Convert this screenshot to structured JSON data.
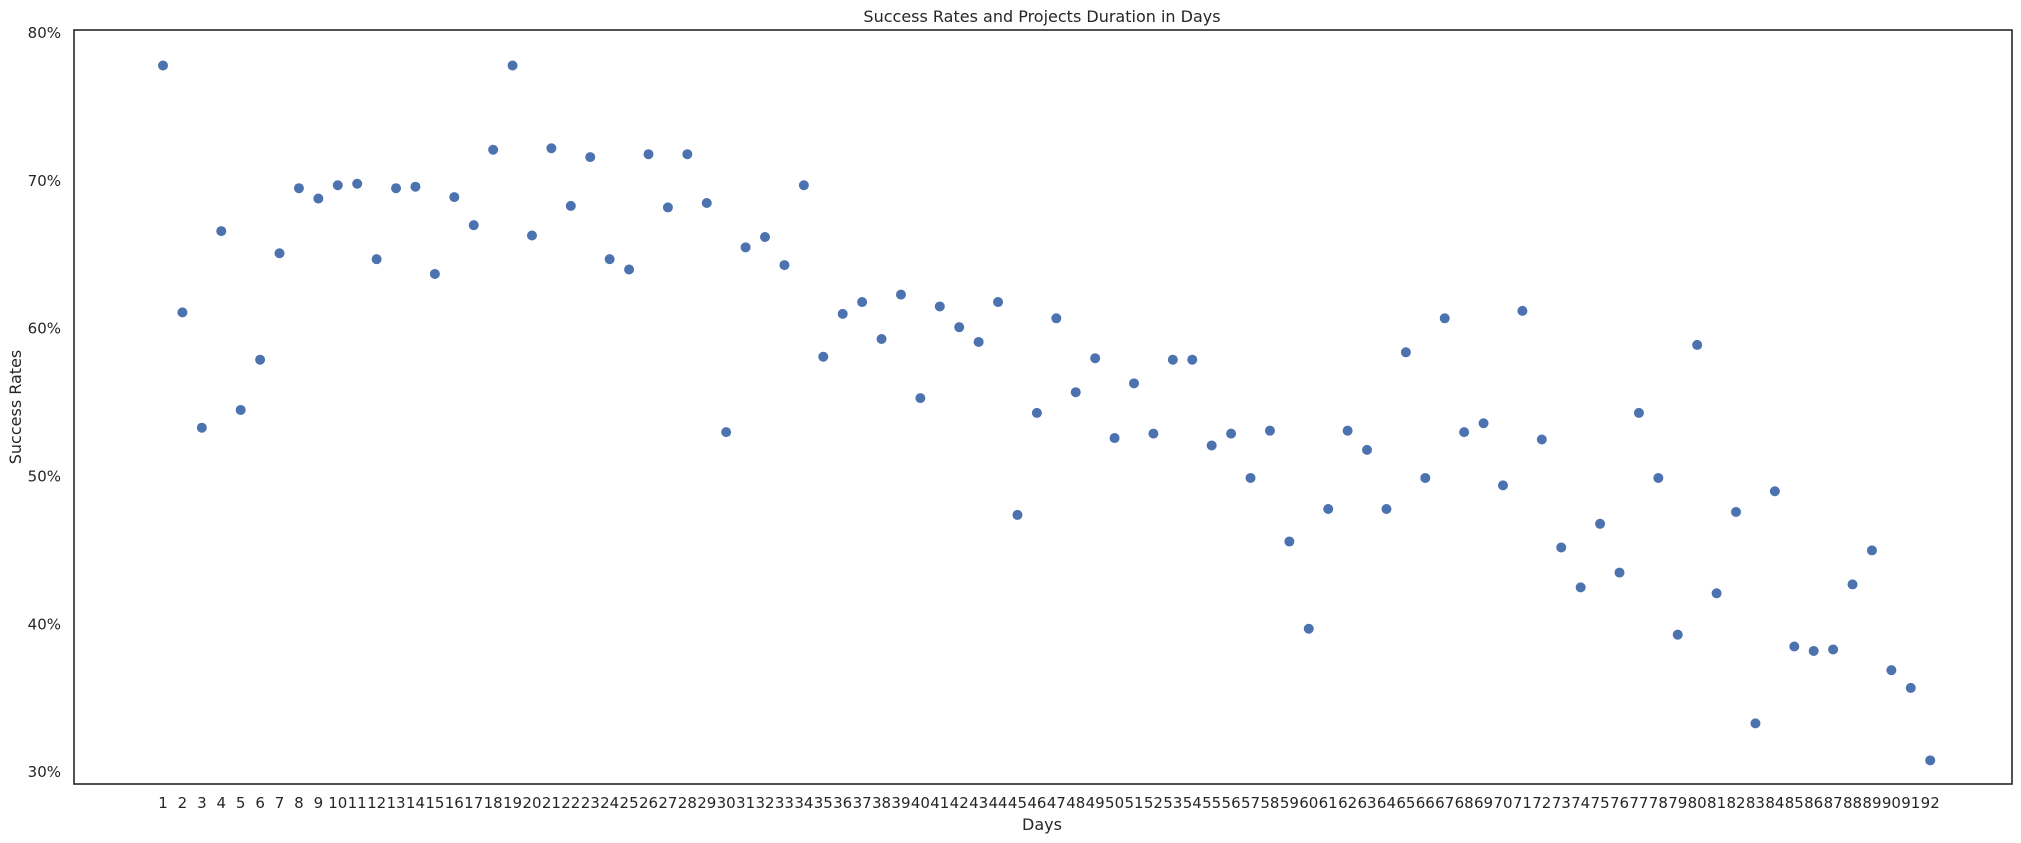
{
  "chart_data": {
    "type": "scatter",
    "title": "Success Rates and Projects Duration in Days",
    "xlabel": "Days",
    "ylabel": "Success Rates",
    "x_tick_labels": [
      "1",
      "2",
      "3",
      "4",
      "5",
      "6",
      "7",
      "8",
      "9",
      "10",
      "11",
      "12",
      "13",
      "14",
      "15",
      "16",
      "17",
      "18",
      "19",
      "20",
      "21",
      "22",
      "23",
      "24",
      "25",
      "26",
      "27",
      "28",
      "29",
      "30",
      "31",
      "32",
      "33",
      "34",
      "35",
      "36",
      "37",
      "38",
      "39",
      "40",
      "41",
      "42",
      "43",
      "44",
      "45",
      "46",
      "47",
      "48",
      "49",
      "50",
      "51",
      "52",
      "53",
      "54",
      "55",
      "56",
      "57",
      "58",
      "59",
      "60",
      "61",
      "62",
      "63",
      "64",
      "65",
      "66",
      "67",
      "68",
      "69",
      "70",
      "71",
      "72",
      "73",
      "74",
      "75",
      "76",
      "77",
      "78",
      "79",
      "80",
      "81",
      "82",
      "83",
      "84",
      "85",
      "86",
      "87",
      "88",
      "89",
      "90",
      "91",
      "92"
    ],
    "y_tick_labels": [
      "30%",
      "40%",
      "50%",
      "60%",
      "70%",
      "80%"
    ],
    "y_ticks": [
      30,
      40,
      50,
      60,
      70,
      80
    ],
    "ylim": [
      29.2,
      80.2
    ],
    "grid": false,
    "marker_color": "#4c72b0",
    "x": [
      1,
      2,
      3,
      4,
      5,
      6,
      7,
      8,
      9,
      10,
      11,
      12,
      13,
      14,
      15,
      16,
      17,
      18,
      19,
      20,
      21,
      22,
      23,
      24,
      25,
      26,
      27,
      28,
      29,
      30,
      31,
      32,
      33,
      34,
      35,
      36,
      37,
      38,
      39,
      40,
      41,
      42,
      43,
      44,
      45,
      46,
      47,
      48,
      49,
      50,
      51,
      52,
      53,
      54,
      55,
      56,
      57,
      58,
      59,
      60,
      61,
      62,
      63,
      64,
      65,
      66,
      67,
      68,
      69,
      70,
      71,
      72,
      73,
      74,
      75,
      76,
      77,
      78,
      79,
      80,
      81,
      82,
      83,
      84,
      85,
      86,
      87,
      88,
      89,
      90,
      91,
      92
    ],
    "y": [
      77.8,
      61.1,
      53.3,
      66.6,
      54.5,
      57.9,
      65.1,
      69.5,
      68.8,
      69.7,
      69.8,
      64.7,
      69.5,
      69.6,
      63.7,
      68.9,
      67.0,
      72.1,
      77.8,
      66.3,
      72.2,
      68.3,
      71.6,
      64.7,
      64.0,
      71.8,
      68.2,
      71.8,
      68.5,
      53.0,
      65.5,
      66.2,
      64.3,
      69.7,
      58.1,
      61.0,
      61.8,
      59.3,
      62.3,
      55.3,
      61.5,
      60.1,
      59.1,
      61.8,
      47.4,
      54.3,
      60.7,
      55.7,
      58.0,
      52.6,
      56.3,
      52.9,
      57.9,
      57.9,
      52.1,
      52.9,
      49.9,
      53.1,
      45.6,
      39.7,
      47.8,
      53.1,
      51.8,
      47.8,
      58.4,
      49.9,
      60.7,
      53.0,
      53.6,
      49.4,
      61.2,
      52.5,
      45.2,
      42.5,
      46.8,
      43.5,
      54.3,
      49.9,
      39.3,
      58.9,
      42.1,
      47.6,
      33.3,
      49.0,
      38.5,
      38.2,
      38.3,
      42.7,
      45.0,
      36.9,
      35.7,
      30.8
    ]
  }
}
